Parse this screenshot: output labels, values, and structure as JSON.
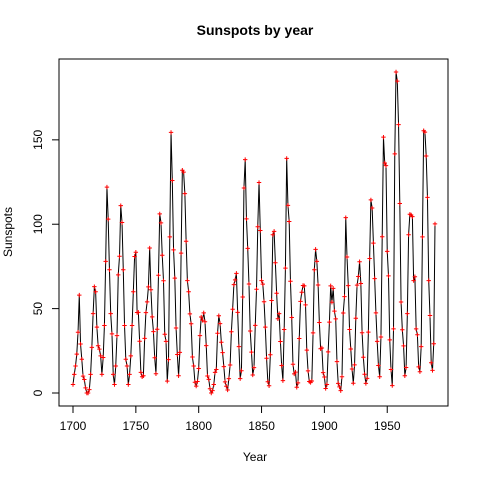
{
  "chart_data": {
    "type": "line",
    "title": "Sunspots by year",
    "xlabel": "Year",
    "ylabel": "Sunspots",
    "xlim": [
      1700,
      1988
    ],
    "ylim": [
      0,
      190.2
    ],
    "xticks": [
      1700,
      1750,
      1800,
      1850,
      1900,
      1950
    ],
    "yticks": [
      0,
      50,
      100,
      150
    ],
    "grid": false,
    "legend": "none",
    "line_color": "#000000",
    "point_color": "#ff0000",
    "point_symbol": "plus",
    "series": [
      {
        "x": [
          1700,
          1701,
          1702,
          1703,
          1704,
          1705,
          1706,
          1707,
          1708,
          1709,
          1710,
          1711,
          1712,
          1713,
          1714,
          1715,
          1716,
          1717,
          1718,
          1719,
          1720,
          1721,
          1722,
          1723,
          1724,
          1725,
          1726,
          1727,
          1728,
          1729,
          1730,
          1731,
          1732,
          1733,
          1734,
          1735,
          1736,
          1737,
          1738,
          1739,
          1740,
          1741,
          1742,
          1743,
          1744,
          1745,
          1746,
          1747,
          1748,
          1749,
          1750,
          1751,
          1752,
          1753,
          1754,
          1755,
          1756,
          1757,
          1758,
          1759,
          1760,
          1761,
          1762,
          1763,
          1764,
          1765,
          1766,
          1767,
          1768,
          1769,
          1770,
          1771,
          1772,
          1773,
          1774,
          1775,
          1776,
          1777,
          1778,
          1779,
          1780,
          1781,
          1782,
          1783,
          1784,
          1785,
          1786,
          1787,
          1788,
          1789,
          1790,
          1791,
          1792,
          1793,
          1794,
          1795,
          1796,
          1797,
          1798,
          1799,
          1800,
          1801,
          1802,
          1803,
          1804,
          1805,
          1806,
          1807,
          1808,
          1809,
          1810,
          1811,
          1812,
          1813,
          1814,
          1815,
          1816,
          1817,
          1818,
          1819,
          1820,
          1821,
          1822,
          1823,
          1824,
          1825,
          1826,
          1827,
          1828,
          1829,
          1830,
          1831,
          1832,
          1833,
          1834,
          1835,
          1836,
          1837,
          1838,
          1839,
          1840,
          1841,
          1842,
          1843,
          1844,
          1845,
          1846,
          1847,
          1848,
          1849,
          1850,
          1851,
          1852,
          1853,
          1854,
          1855,
          1856,
          1857,
          1858,
          1859,
          1860,
          1861,
          1862,
          1863,
          1864,
          1865,
          1866,
          1867,
          1868,
          1869,
          1870,
          1871,
          1872,
          1873,
          1874,
          1875,
          1876,
          1877,
          1878,
          1879,
          1880,
          1881,
          1882,
          1883,
          1884,
          1885,
          1886,
          1887,
          1888,
          1889,
          1890,
          1891,
          1892,
          1893,
          1894,
          1895,
          1896,
          1897,
          1898,
          1899,
          1900,
          1901,
          1902,
          1903,
          1904,
          1905,
          1906,
          1907,
          1908,
          1909,
          1910,
          1911,
          1912,
          1913,
          1914,
          1915,
          1916,
          1917,
          1918,
          1919,
          1920,
          1921,
          1922,
          1923,
          1924,
          1925,
          1926,
          1927,
          1928,
          1929,
          1930,
          1931,
          1932,
          1933,
          1934,
          1935,
          1936,
          1937,
          1938,
          1939,
          1940,
          1941,
          1942,
          1943,
          1944,
          1945,
          1946,
          1947,
          1948,
          1949,
          1950,
          1951,
          1952,
          1953,
          1954,
          1955,
          1956,
          1957,
          1958,
          1959,
          1960,
          1961,
          1962,
          1963,
          1964,
          1965,
          1966,
          1967,
          1968,
          1969,
          1970,
          1971,
          1972,
          1973,
          1974,
          1975,
          1976,
          1977,
          1978,
          1979,
          1980,
          1981,
          1982,
          1983,
          1984,
          1985,
          1986,
          1987,
          1988
        ],
        "y": [
          5,
          11,
          16,
          23,
          36,
          58,
          29,
          20,
          10,
          8,
          3,
          0,
          0,
          2,
          11,
          27,
          47,
          63,
          60,
          39,
          28,
          26,
          22,
          11,
          21,
          40,
          78,
          122,
          103,
          73,
          47,
          35,
          11,
          5,
          16,
          34,
          70,
          81,
          111,
          101,
          73,
          40,
          20,
          16,
          5,
          11,
          22,
          40,
          60,
          80.9,
          83.4,
          47.7,
          47.8,
          30.7,
          12.2,
          9.6,
          10.2,
          32.4,
          47.6,
          54,
          62.9,
          85.9,
          61.2,
          45.1,
          36.4,
          20.9,
          11.4,
          37.8,
          69.8,
          106.1,
          100.8,
          81.6,
          66.5,
          34.8,
          30.6,
          7,
          19.8,
          92.5,
          154.4,
          125.9,
          84.8,
          68.1,
          38.5,
          22.8,
          10.2,
          24.1,
          82.9,
          132,
          130.9,
          118.1,
          89.9,
          66.6,
          60,
          46.9,
          41,
          21.3,
          16,
          6.4,
          4.1,
          6.8,
          14.5,
          34,
          45,
          43.1,
          47.5,
          42.2,
          28.1,
          10.1,
          8.1,
          2.5,
          0,
          1.4,
          5,
          12.2,
          13.9,
          35.4,
          45.8,
          41.1,
          30.1,
          23.9,
          15.6,
          6.6,
          4,
          1.8,
          8.5,
          16.6,
          36.3,
          49.6,
          64.2,
          67,
          70.9,
          47.8,
          27.5,
          8.5,
          13.2,
          56.9,
          121.5,
          138.3,
          103.2,
          85.7,
          64.6,
          36.7,
          24.2,
          10.7,
          15,
          40.1,
          61.5,
          98.5,
          124.7,
          96.3,
          66.6,
          64.5,
          54.1,
          39,
          20.6,
          6.7,
          4.3,
          22.7,
          54.8,
          93.8,
          95.8,
          77.2,
          59.1,
          44,
          47,
          30.5,
          16.3,
          7.3,
          37.6,
          74,
          139,
          111.2,
          101.6,
          66.2,
          44.7,
          17,
          11.3,
          12.4,
          3.4,
          6,
          32.3,
          54.3,
          59.7,
          63.7,
          63.5,
          52.2,
          25.4,
          13.1,
          6.8,
          6.3,
          7.1,
          35.6,
          73,
          85.1,
          78,
          64,
          41.8,
          26.2,
          26.7,
          12.1,
          9.5,
          2.7,
          5,
          24.4,
          42,
          63.5,
          53.8,
          62,
          48.5,
          43.9,
          18.6,
          5.7,
          3.6,
          1.4,
          9.6,
          47.4,
          57.1,
          103.9,
          80.6,
          63.6,
          37.6,
          26.1,
          14.2,
          5.8,
          16.7,
          44.3,
          63.9,
          69,
          77.8,
          64.9,
          35.7,
          21.2,
          11.1,
          5.7,
          8.7,
          36.1,
          79.7,
          114.4,
          109.6,
          88.8,
          67.8,
          47.5,
          30.6,
          16.3,
          9.6,
          33.2,
          92.6,
          151.6,
          136.3,
          134.7,
          83.9,
          69.4,
          31.5,
          13.9,
          4.4,
          38,
          141.7,
          190.2,
          184.8,
          159,
          112.3,
          53.9,
          37.5,
          27.9,
          10.2,
          15.1,
          47,
          93.8,
          105.9,
          105.5,
          104.5,
          66.6,
          68.9,
          38,
          34.5,
          15.5,
          12.6,
          27.5,
          92.5,
          155.4,
          154.6,
          140.4,
          115.9,
          66.6,
          45.9,
          17.9,
          13.4,
          29.2,
          100.2
        ]
      }
    ]
  }
}
